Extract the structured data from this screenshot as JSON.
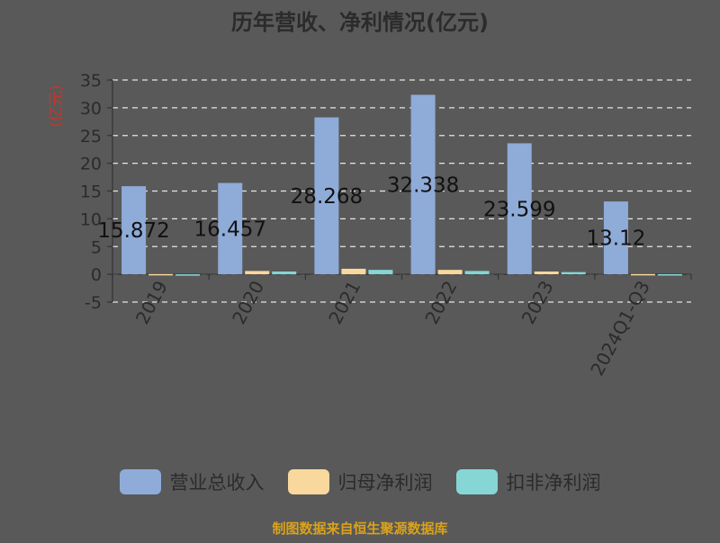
{
  "chart_data": {
    "type": "bar",
    "title": "历年营收、净利情况(亿元)",
    "ylabel": "(亿元)",
    "xlabel": "",
    "ylim": [
      -5,
      35
    ],
    "yticks": [
      35,
      30,
      25,
      20,
      15,
      10,
      5,
      0,
      -5
    ],
    "grid": true,
    "legend_position": "bottom",
    "categories": [
      "2019",
      "2020",
      "2021",
      "2022",
      "2023",
      "2024Q1-Q3"
    ],
    "series": [
      {
        "name": "营业总收入",
        "color": "#8fabd8",
        "values": [
          15.872,
          16.457,
          28.268,
          32.338,
          23.599,
          13.12
        ],
        "labels": [
          "15.872",
          "16.457",
          "28.268",
          "32.338",
          "23.599",
          "13.12"
        ]
      },
      {
        "name": "归母净利润",
        "color": "#f9d89e",
        "values": [
          0.05,
          0.6,
          1.0,
          0.8,
          0.5,
          0.05
        ]
      },
      {
        "name": "扣非净利润",
        "color": "#86d6d6",
        "values": [
          -0.25,
          0.5,
          0.8,
          0.6,
          0.4,
          0.02
        ]
      }
    ]
  },
  "footer": {
    "note": "制图数据来自恒生聚源数据库"
  }
}
